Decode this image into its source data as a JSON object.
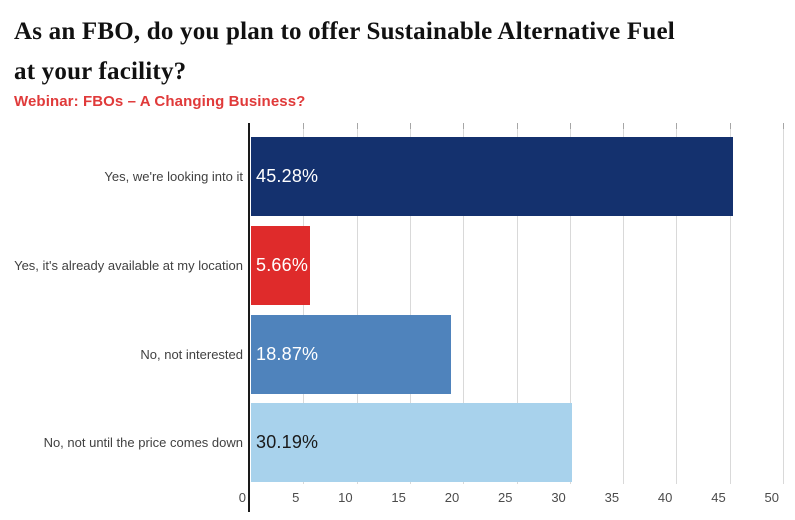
{
  "header": {
    "title": "As an FBO, do you plan to offer Sustainable Alternative Fuel\nat your facility?",
    "subtitle": "Webinar: FBOs – A Changing Business?"
  },
  "colors": {
    "title_text": "#111111",
    "subtitle_text": "#E03A3A",
    "axis_line": "#1a1a1a",
    "gridline": "#d9d9d9",
    "tick_stub": "#a6a6a6",
    "tick_label_text": "#4b4b4b",
    "category_label_text": "#414141"
  },
  "chart_data": {
    "type": "bar",
    "orientation": "horizontal",
    "title": "As an FBO, do you plan to offer Sustainable Alternative Fuel at your facility?",
    "subtitle": "Webinar: FBOs – A Changing Business?",
    "categories": [
      "Yes, we're looking into it",
      "Yes, it's already available at my location",
      "No, not interested",
      "No, not until the price comes down"
    ],
    "values": [
      45.28,
      5.66,
      18.87,
      30.19
    ],
    "value_labels": [
      "45.28%",
      "5.66%",
      "18.87%",
      "30.19%"
    ],
    "bar_colors": [
      "#14316E",
      "#DF2B2B",
      "#4F83BC",
      "#A8D2EC"
    ],
    "value_label_colors": [
      "#ffffff",
      "#ffffff",
      "#ffffff",
      "#1a1a1a"
    ],
    "xlabel": "",
    "ylabel": "",
    "xlim": [
      0,
      50
    ],
    "x_ticks": [
      0,
      5,
      10,
      15,
      20,
      25,
      30,
      35,
      40,
      45,
      50
    ],
    "grid": true,
    "legend": false
  }
}
